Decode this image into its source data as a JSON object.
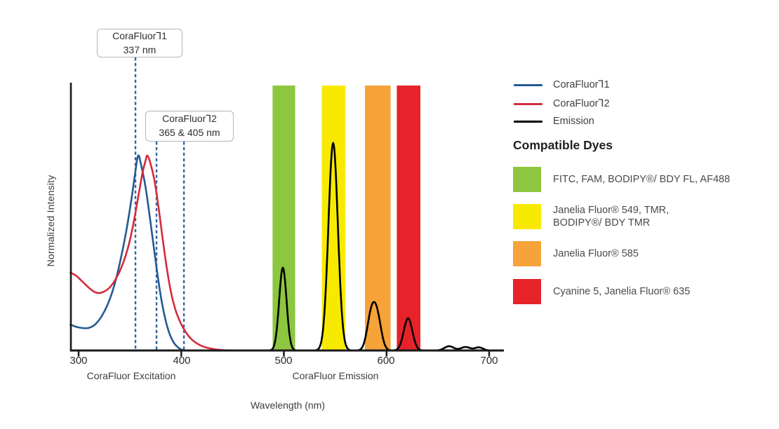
{
  "colors": {
    "band_green": "#8DC63F",
    "band_yellow": "#F7EA00",
    "band_orange": "#F6A339",
    "band_red": "#E6232B",
    "curve_corafluor1": "#245A92",
    "curve_corafluor2": "#D42B3C",
    "curve_emission": "#000000",
    "guide_dash": "#34679E",
    "axis": "#1A1A1A"
  },
  "y_axis": {
    "label": "Normalized Intensity"
  },
  "x_axis": {
    "ticks": [
      "300",
      "400",
      "500",
      "600",
      "700"
    ],
    "tick_values": [
      300,
      400,
      500,
      600,
      700
    ],
    "region_labels": [
      {
        "text": "CoraFluor Excitation"
      },
      {
        "text": "CoraFluor Emission"
      }
    ],
    "title": "Wavelength (nm)"
  },
  "annotations": [
    {
      "text": "CoraFluor⅂1\n337 nm",
      "guides_nm": [
        355.4
      ]
    },
    {
      "text": "CoraFluor⅂2\n365 & 405 nm",
      "guides_nm": [
        375.9,
        402.6
      ]
    }
  ],
  "legend": {
    "items": [
      {
        "label": "CoraFluor⅂1",
        "color_key": "curve_corafluor1"
      },
      {
        "label": "CoraFluor⅂2",
        "color_key": "curve_corafluor2"
      },
      {
        "label": "Emission",
        "color_key": "curve_emission"
      }
    ]
  },
  "compatible_dyes": {
    "heading": "Compatible Dyes",
    "items": [
      {
        "label": "FITC, FAM, BODIPY®/ BDY FL, AF488",
        "color_key": "band_green"
      },
      {
        "label": "Janelia Fluor® 549, TMR,\nBODIPY®/ BDY TMR",
        "color_key": "band_yellow"
      },
      {
        "label": "Janelia Fluor® 585",
        "color_key": "band_orange"
      },
      {
        "label": "Cyanine 5, Janelia Fluor® 635",
        "color_key": "band_red"
      }
    ]
  },
  "chart_data": {
    "type": "line",
    "title": "",
    "xlabel": "Wavelength (nm)",
    "ylabel": "Normalized Intensity",
    "x_range_nm": [
      292,
      712
    ],
    "ylim": [
      0,
      1.1
    ],
    "grid": false,
    "legend_position": "right",
    "filter_bands_nm": [
      {
        "name": "green filter band",
        "range": [
          489,
          511
        ],
        "color_key": "band_green"
      },
      {
        "name": "yellow filter band",
        "range": [
          537,
          560
        ],
        "color_key": "band_yellow"
      },
      {
        "name": "orange filter band",
        "range": [
          579,
          604
        ],
        "color_key": "band_orange"
      },
      {
        "name": "red filter band",
        "range": [
          610,
          633
        ],
        "color_key": "band_red"
      }
    ],
    "series": [
      {
        "name": "CoraFluor⅂1 excitation",
        "color_key": "curve_corafluor1",
        "points": [
          [
            292,
            0.133
          ],
          [
            298,
            0.121
          ],
          [
            304,
            0.115
          ],
          [
            310,
            0.116
          ],
          [
            316,
            0.133
          ],
          [
            322,
            0.172
          ],
          [
            328,
            0.232
          ],
          [
            334,
            0.32
          ],
          [
            340,
            0.445
          ],
          [
            346,
            0.6
          ],
          [
            351,
            0.76
          ],
          [
            355,
            0.905
          ],
          [
            358,
            1.0
          ],
          [
            361,
            0.95
          ],
          [
            365,
            0.845
          ],
          [
            369,
            0.7
          ],
          [
            373,
            0.54
          ],
          [
            377,
            0.385
          ],
          [
            381,
            0.25
          ],
          [
            385,
            0.15
          ],
          [
            389,
            0.08
          ],
          [
            393,
            0.038
          ],
          [
            397,
            0.015
          ],
          [
            400,
            0.005
          ],
          [
            403,
            0.0
          ]
        ]
      },
      {
        "name": "CoraFluor⅂2 excitation",
        "color_key": "curve_corafluor2",
        "points": [
          [
            292,
            0.4
          ],
          [
            298,
            0.382
          ],
          [
            304,
            0.352
          ],
          [
            310,
            0.322
          ],
          [
            315,
            0.302
          ],
          [
            319,
            0.295
          ],
          [
            324,
            0.3
          ],
          [
            330,
            0.322
          ],
          [
            336,
            0.365
          ],
          [
            342,
            0.43
          ],
          [
            348,
            0.525
          ],
          [
            353,
            0.64
          ],
          [
            358,
            0.785
          ],
          [
            362,
            0.905
          ],
          [
            365,
            0.97
          ],
          [
            367,
            1.0
          ],
          [
            370,
            0.96
          ],
          [
            374,
            0.87
          ],
          [
            378,
            0.73
          ],
          [
            382,
            0.57
          ],
          [
            386,
            0.42
          ],
          [
            390,
            0.3
          ],
          [
            394,
            0.215
          ],
          [
            398,
            0.158
          ],
          [
            402,
            0.115
          ],
          [
            406,
            0.082
          ],
          [
            410,
            0.058
          ],
          [
            415,
            0.037
          ],
          [
            420,
            0.023
          ],
          [
            426,
            0.013
          ],
          [
            432,
            0.007
          ],
          [
            440,
            0.002
          ],
          [
            448,
            0.0
          ]
        ]
      },
      {
        "name": "Emission",
        "color_key": "curve_emission",
        "model": "sum_of_gaussians",
        "domain_nm": [
          464,
          712
        ],
        "peaks": [
          {
            "center": 499,
            "sigma": 3.6,
            "height": 0.425
          },
          {
            "center": 548,
            "sigma": 4.6,
            "height": 1.065
          },
          {
            "center": 585,
            "sigma": 4.0,
            "height": 0.17
          },
          {
            "center": 591,
            "sigma": 4.0,
            "height": 0.16
          },
          {
            "center": 621,
            "sigma": 4.2,
            "height": 0.165
          },
          {
            "center": 661,
            "sigma": 4.5,
            "height": 0.022
          },
          {
            "center": 677,
            "sigma": 4.5,
            "height": 0.018
          },
          {
            "center": 690,
            "sigma": 4.0,
            "height": 0.016
          }
        ]
      }
    ]
  }
}
